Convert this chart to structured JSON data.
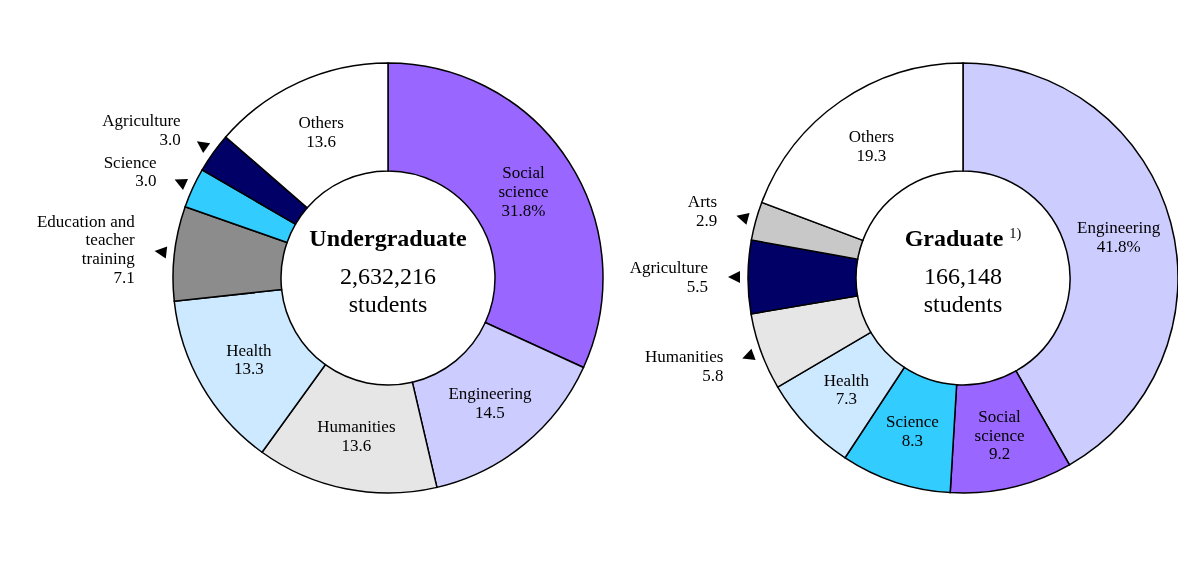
{
  "chart_data": [
    {
      "type": "donut",
      "title": "Undergraduate",
      "subtitle": "2,632,216\nstudents",
      "categories": [
        "Social science",
        "Engineering",
        "Humanities",
        "Health",
        "Education and teacher training",
        "Science",
        "Agriculture",
        "Others"
      ],
      "values": [
        31.8,
        14.5,
        13.6,
        13.3,
        7.1,
        3.0,
        3.0,
        13.6
      ],
      "colors": [
        "#9966ff",
        "#ccccff",
        "#e6e6e6",
        "#cce9ff",
        "#8c8c8c",
        "#33ccff",
        "#000066",
        "#ffffff"
      ],
      "value_labels": [
        "31.8%",
        "14.5",
        "13.6",
        "13.3",
        "7.1",
        "3.0",
        "3.0",
        "13.6"
      ]
    },
    {
      "type": "donut",
      "title": "Graduate $^{1)}$",
      "subtitle": "166,148\nstudents",
      "categories": [
        "Engineering",
        "Social science",
        "Science",
        "Health",
        "Humanities",
        "Agriculture",
        "Arts",
        "Others"
      ],
      "values": [
        41.8,
        9.2,
        8.3,
        7.3,
        5.8,
        5.5,
        2.9,
        19.3
      ],
      "colors": [
        "#ccccff",
        "#9966ff",
        "#33ccff",
        "#cce9ff",
        "#e6e6e6",
        "#000066",
        "#c8c8c8",
        "#ffffff"
      ],
      "value_labels": [
        "41.8%",
        "9.2",
        "8.3",
        "7.3",
        "5.8",
        "5.5",
        "2.9",
        "19.3"
      ]
    }
  ]
}
